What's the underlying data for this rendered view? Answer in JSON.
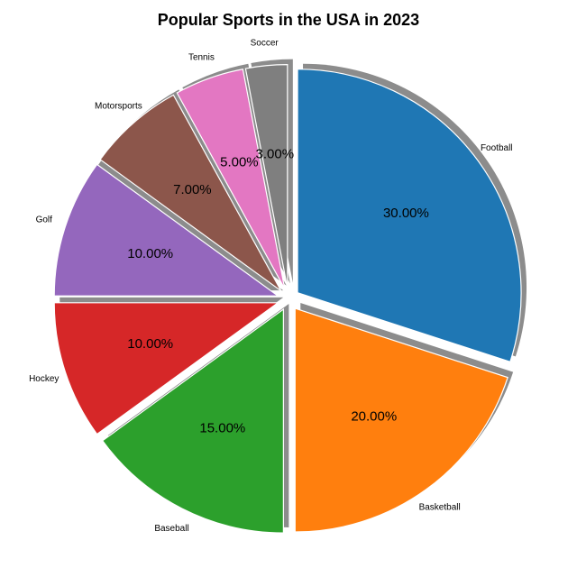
{
  "chart_data": {
    "type": "pie",
    "title": "Popular Sports in the USA in 2023",
    "categories": [
      "Football",
      "Basketball",
      "Baseball",
      "Hockey",
      "Golf",
      "Motorsports",
      "Tennis",
      "Soccer"
    ],
    "values": [
      30,
      20,
      15,
      10,
      10,
      7,
      5,
      3
    ],
    "percent_labels": [
      "30.00%",
      "20.00%",
      "15.00%",
      "10.00%",
      "10.00%",
      "7.00%",
      "5.00%",
      "3.00%"
    ],
    "colors": [
      "#1f77b4",
      "#ff7f0e",
      "#2ca02c",
      "#d62728",
      "#9467bd",
      "#8c564b",
      "#e377c2",
      "#7f7f7f"
    ],
    "start_angle_deg": 90,
    "direction": "clockwise",
    "explode": 0.05,
    "shadow": true,
    "legend": "none"
  }
}
